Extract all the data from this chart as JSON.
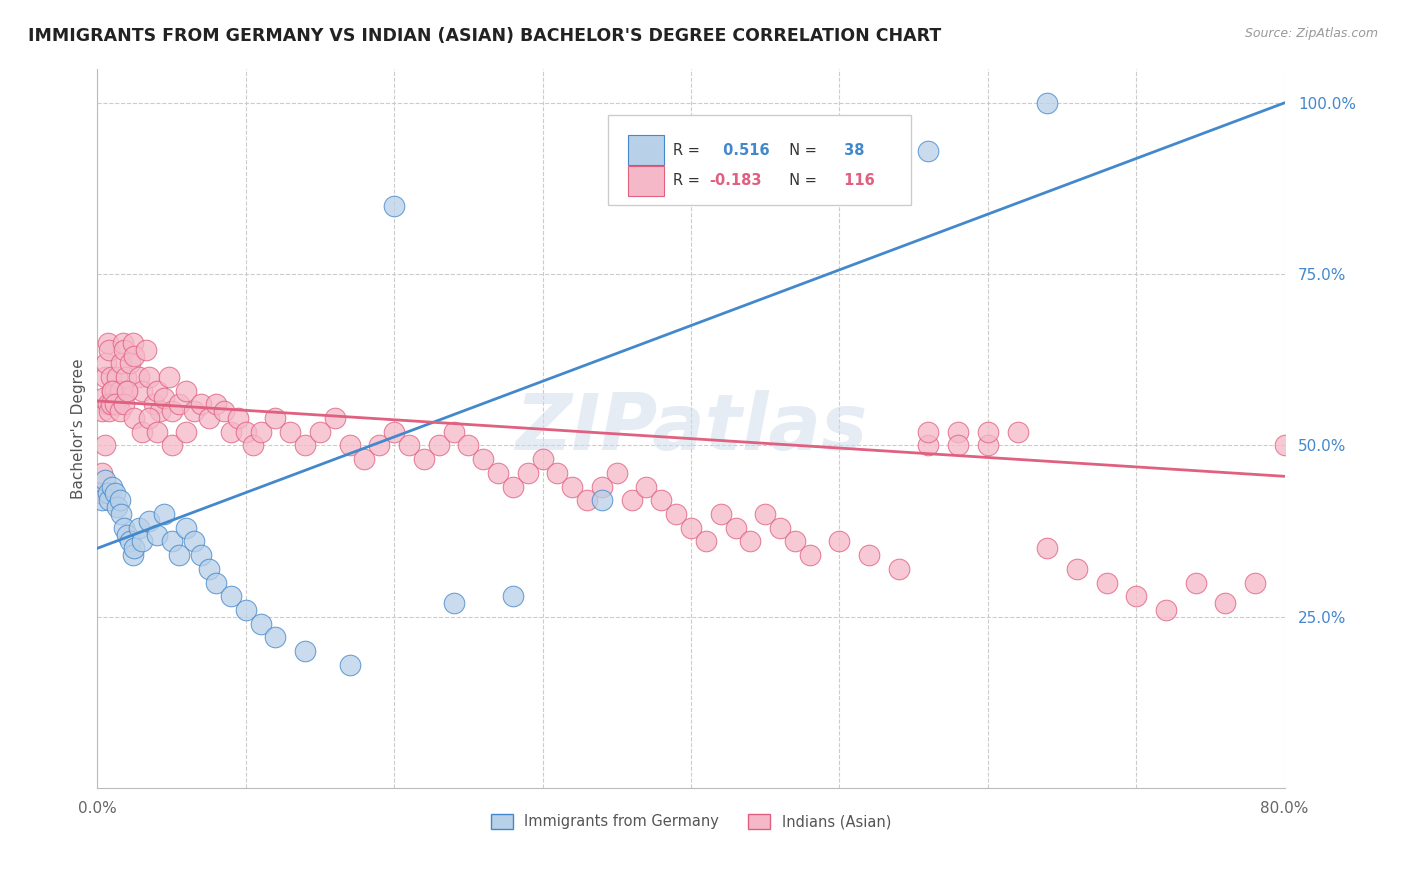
{
  "title": "IMMIGRANTS FROM GERMANY VS INDIAN (ASIAN) BACHELOR'S DEGREE CORRELATION CHART",
  "source": "Source: ZipAtlas.com",
  "ylabel": "Bachelor's Degree",
  "legend_label_blue": "Immigrants from Germany",
  "legend_label_pink": "Indians (Asian)",
  "R_blue": 0.516,
  "N_blue": 38,
  "R_pink": -0.183,
  "N_pink": 116,
  "blue_color": "#b8d0e8",
  "pink_color": "#f5b8c8",
  "blue_line_color": "#4488cc",
  "pink_line_color": "#e06080",
  "watermark": "ZIPatlas",
  "background_color": "#ffffff",
  "grid_color": "#cccccc",
  "blue_line_x0": 0.0,
  "blue_line_y0": 0.35,
  "blue_line_x1": 0.8,
  "blue_line_y1": 1.0,
  "pink_line_x0": 0.0,
  "pink_line_y0": 0.565,
  "pink_line_x1": 0.8,
  "pink_line_y1": 0.455,
  "blue_x": [
    0.003,
    0.005,
    0.007,
    0.008,
    0.01,
    0.012,
    0.013,
    0.015,
    0.016,
    0.018,
    0.02,
    0.022,
    0.024,
    0.025,
    0.028,
    0.03,
    0.035,
    0.04,
    0.045,
    0.05,
    0.055,
    0.06,
    0.065,
    0.07,
    0.075,
    0.08,
    0.09,
    0.1,
    0.11,
    0.12,
    0.14,
    0.17,
    0.2,
    0.24,
    0.28,
    0.34,
    0.56,
    0.64
  ],
  "blue_y": [
    0.42,
    0.45,
    0.43,
    0.42,
    0.44,
    0.43,
    0.41,
    0.42,
    0.4,
    0.38,
    0.37,
    0.36,
    0.34,
    0.35,
    0.38,
    0.36,
    0.39,
    0.37,
    0.4,
    0.36,
    0.34,
    0.38,
    0.36,
    0.34,
    0.32,
    0.3,
    0.28,
    0.26,
    0.24,
    0.22,
    0.2,
    0.18,
    0.85,
    0.27,
    0.28,
    0.42,
    0.93,
    1.0
  ],
  "pink_x": [
    0.002,
    0.003,
    0.004,
    0.005,
    0.006,
    0.007,
    0.008,
    0.009,
    0.01,
    0.011,
    0.012,
    0.013,
    0.014,
    0.015,
    0.016,
    0.017,
    0.018,
    0.019,
    0.02,
    0.022,
    0.024,
    0.025,
    0.028,
    0.03,
    0.033,
    0.035,
    0.038,
    0.04,
    0.042,
    0.045,
    0.048,
    0.05,
    0.055,
    0.06,
    0.065,
    0.07,
    0.075,
    0.08,
    0.085,
    0.09,
    0.095,
    0.1,
    0.105,
    0.11,
    0.12,
    0.13,
    0.14,
    0.15,
    0.16,
    0.17,
    0.18,
    0.19,
    0.2,
    0.21,
    0.22,
    0.23,
    0.24,
    0.25,
    0.26,
    0.27,
    0.28,
    0.29,
    0.3,
    0.31,
    0.32,
    0.33,
    0.34,
    0.35,
    0.36,
    0.37,
    0.38,
    0.39,
    0.4,
    0.41,
    0.42,
    0.43,
    0.44,
    0.45,
    0.46,
    0.47,
    0.48,
    0.5,
    0.52,
    0.54,
    0.56,
    0.58,
    0.6,
    0.62,
    0.64,
    0.66,
    0.68,
    0.7,
    0.72,
    0.74,
    0.76,
    0.78,
    0.8,
    0.56,
    0.58,
    0.6,
    0.003,
    0.005,
    0.007,
    0.008,
    0.009,
    0.01,
    0.012,
    0.015,
    0.018,
    0.02,
    0.025,
    0.03,
    0.035,
    0.04,
    0.05,
    0.06
  ],
  "pink_y": [
    0.43,
    0.55,
    0.57,
    0.6,
    0.62,
    0.65,
    0.64,
    0.6,
    0.58,
    0.56,
    0.58,
    0.6,
    0.56,
    0.58,
    0.62,
    0.65,
    0.64,
    0.6,
    0.58,
    0.62,
    0.65,
    0.63,
    0.6,
    0.58,
    0.64,
    0.6,
    0.56,
    0.58,
    0.55,
    0.57,
    0.6,
    0.55,
    0.56,
    0.58,
    0.55,
    0.56,
    0.54,
    0.56,
    0.55,
    0.52,
    0.54,
    0.52,
    0.5,
    0.52,
    0.54,
    0.52,
    0.5,
    0.52,
    0.54,
    0.5,
    0.48,
    0.5,
    0.52,
    0.5,
    0.48,
    0.5,
    0.52,
    0.5,
    0.48,
    0.46,
    0.44,
    0.46,
    0.48,
    0.46,
    0.44,
    0.42,
    0.44,
    0.46,
    0.42,
    0.44,
    0.42,
    0.4,
    0.38,
    0.36,
    0.4,
    0.38,
    0.36,
    0.4,
    0.38,
    0.36,
    0.34,
    0.36,
    0.34,
    0.32,
    0.5,
    0.52,
    0.5,
    0.52,
    0.35,
    0.32,
    0.3,
    0.28,
    0.26,
    0.3,
    0.27,
    0.3,
    0.5,
    0.52,
    0.5,
    0.52,
    0.46,
    0.5,
    0.56,
    0.55,
    0.56,
    0.58,
    0.56,
    0.55,
    0.56,
    0.58,
    0.54,
    0.52,
    0.54,
    0.52,
    0.5,
    0.52
  ],
  "xlim": [
    0.0,
    0.8
  ],
  "ylim": [
    0.0,
    1.05
  ],
  "yticks": [
    0.25,
    0.5,
    0.75,
    1.0
  ],
  "ytick_labels": [
    "25.0%",
    "50.0%",
    "75.0%",
    "100.0%"
  ],
  "xtick_labels_show": [
    "0.0%",
    "80.0%"
  ]
}
